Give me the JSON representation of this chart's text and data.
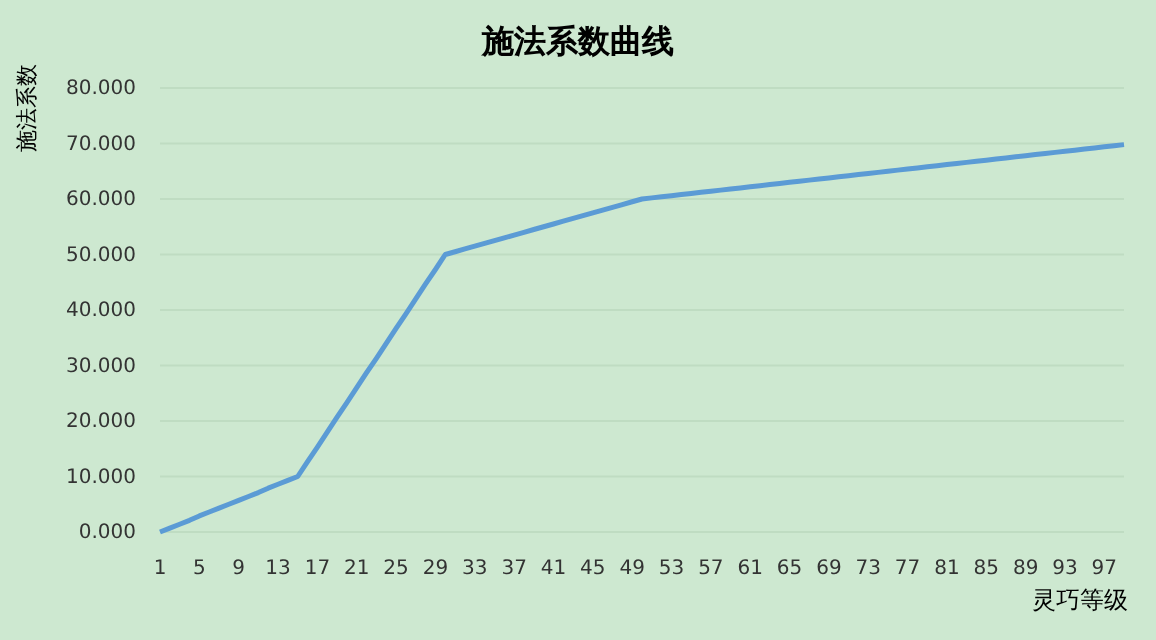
{
  "chart_data": {
    "type": "line",
    "title": "施法系数曲线",
    "xlabel": "灵巧等级",
    "ylabel": "施法系数",
    "categories": [
      "1",
      null,
      null,
      null,
      "5",
      null,
      null,
      null,
      "9",
      null,
      null,
      null,
      "13",
      null,
      null,
      null,
      "17",
      null,
      null,
      null,
      "21",
      null,
      null,
      null,
      "25",
      null,
      null,
      null,
      "29",
      null,
      null,
      null,
      "33",
      null,
      null,
      null,
      "37",
      null,
      null,
      null,
      "41",
      null,
      null,
      null,
      "45",
      null,
      null,
      null,
      "49",
      null,
      null,
      null,
      "53",
      null,
      null,
      null,
      "57",
      null,
      null,
      null,
      "61",
      null,
      null,
      null,
      "65",
      null,
      null,
      null,
      "69",
      null,
      null,
      null,
      "73",
      null,
      null,
      null,
      "77",
      null,
      null,
      null,
      "81",
      null,
      null,
      null,
      "85",
      null,
      null,
      null,
      "89",
      null,
      null,
      null,
      "93",
      null,
      null,
      null,
      "97",
      null,
      null
    ],
    "series": [
      {
        "color": "#5b9bd5",
        "values": [
          0,
          0.7,
          1.4,
          2.1,
          2.9,
          3.6,
          4.3,
          5,
          5.7,
          6.4,
          7.1,
          7.9,
          8.6,
          9.3,
          10,
          12.7,
          15.3,
          18,
          20.7,
          23.3,
          26,
          28.7,
          31.3,
          34,
          36.7,
          39.3,
          42,
          44.7,
          47.3,
          50,
          50.5,
          51,
          51.5,
          52,
          52.5,
          53,
          53.5,
          54,
          54.5,
          55,
          55.5,
          56,
          56.5,
          57,
          57.5,
          58,
          58.5,
          59,
          59.5,
          60,
          60.2,
          60.4,
          60.6,
          60.8,
          61,
          61.2,
          61.4,
          61.6,
          61.8,
          62,
          62.2,
          62.4,
          62.6,
          62.8,
          63,
          63.2,
          63.4,
          63.6,
          63.8,
          64,
          64.2,
          64.4,
          64.6,
          64.8,
          65,
          65.2,
          65.4,
          65.6,
          65.8,
          66,
          66.2,
          66.4,
          66.6,
          66.8,
          67,
          67.2,
          67.4,
          67.6,
          67.8,
          68,
          68.2,
          68.4,
          68.6,
          68.8,
          69,
          69.2,
          69.4,
          69.6,
          69.8
        ]
      }
    ],
    "ylim": [
      0,
      80
    ],
    "yticks": [
      {
        "value": 0,
        "label": "0.000"
      },
      {
        "value": 10,
        "label": "10.000"
      },
      {
        "value": 20,
        "label": "20.000"
      },
      {
        "value": 30,
        "label": "30.000"
      },
      {
        "value": 40,
        "label": "40.000"
      },
      {
        "value": 50,
        "label": "50.000"
      },
      {
        "value": 60,
        "label": "60.000"
      },
      {
        "value": 70,
        "label": "70.000"
      },
      {
        "value": 80,
        "label": "80.000"
      }
    ],
    "grid": "y",
    "marker": "none",
    "line_style": "solid"
  }
}
